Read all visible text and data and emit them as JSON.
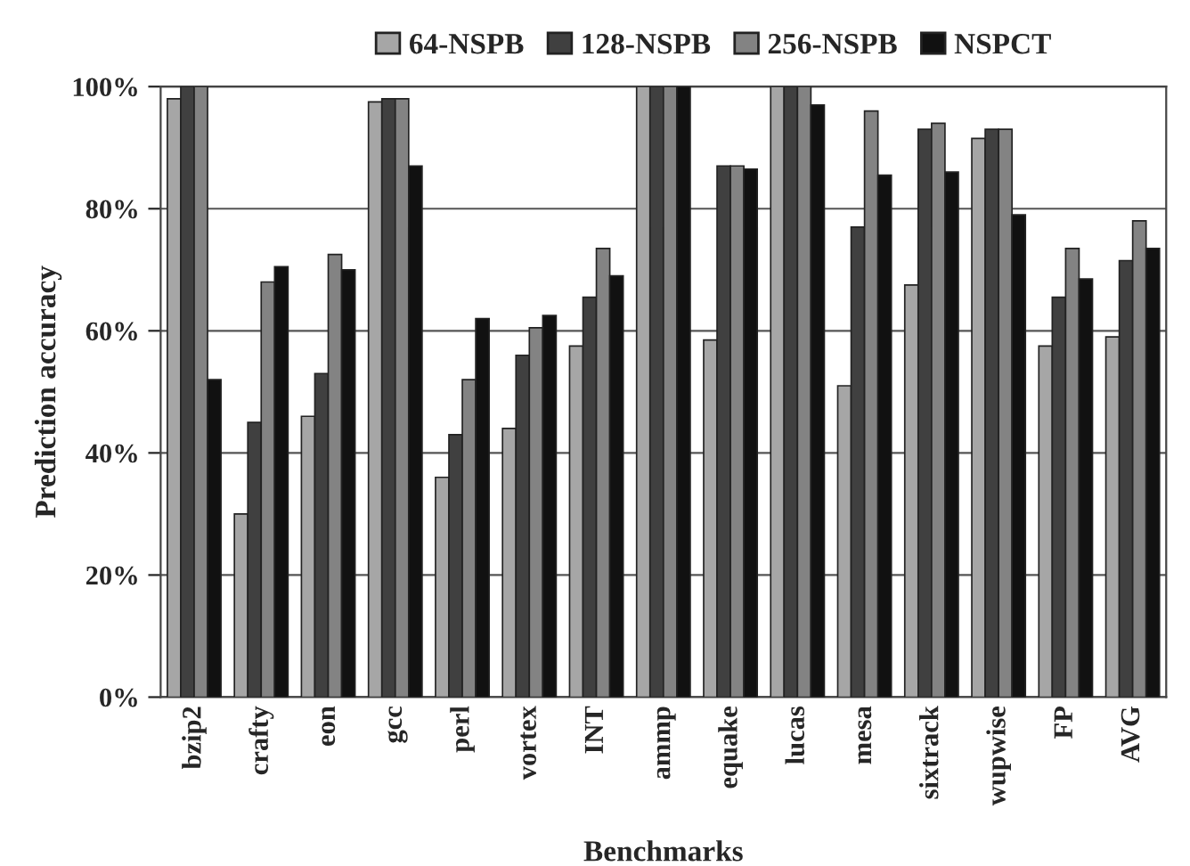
{
  "chart_data": {
    "type": "bar",
    "xlabel": "Benchmarks",
    "ylabel": "Prediction accuracy",
    "categories": [
      "bzip2",
      "crafty",
      "eon",
      "gcc",
      "perl",
      "vortex",
      "INT",
      "ammp",
      "equake",
      "lucas",
      "mesa",
      "sixtrack",
      "wupwise",
      "FP",
      "AVG"
    ],
    "series": [
      {
        "name": "64-NSPB",
        "color": "#a6a6a6",
        "values": [
          98,
          30,
          46,
          97.5,
          36,
          44,
          57.5,
          100,
          58.5,
          100,
          51,
          67.5,
          91.5,
          57.5,
          59
        ]
      },
      {
        "name": "128-NSPB",
        "color": "#404040",
        "values": [
          100,
          45,
          53,
          98,
          43,
          56,
          65.5,
          100,
          87,
          100,
          77,
          93,
          93,
          65.5,
          71.5
        ]
      },
      {
        "name": "256-NSPB",
        "color": "#838383",
        "values": [
          100,
          68,
          72.5,
          98,
          52,
          60.5,
          73.5,
          100,
          87,
          100,
          96,
          94,
          93,
          73.5,
          78
        ]
      },
      {
        "name": "NSPCT",
        "color": "#111111",
        "values": [
          52,
          70.5,
          70,
          87,
          62,
          62.5,
          69,
          100,
          86.5,
          97,
          85.5,
          86,
          79,
          68.5,
          73.5
        ]
      }
    ],
    "ylim": [
      0,
      100
    ],
    "yticks": [
      {
        "value": 0,
        "label": "0%"
      },
      {
        "value": 20,
        "label": "20%"
      },
      {
        "value": 40,
        "label": "40%"
      },
      {
        "value": 60,
        "label": "60%"
      },
      {
        "value": 80,
        "label": "80%"
      },
      {
        "value": 100,
        "label": "100%"
      }
    ],
    "grid": "y",
    "legend": "top"
  }
}
